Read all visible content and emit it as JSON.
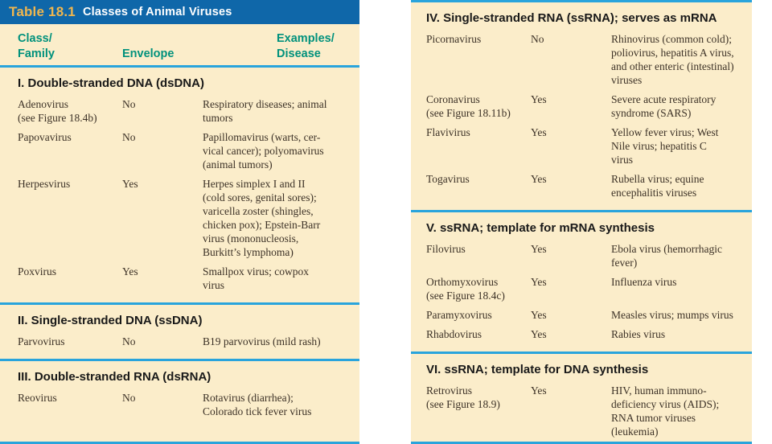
{
  "header": {
    "table_label": "Table 18.1",
    "table_title": "Classes of Animal Viruses"
  },
  "columns": {
    "family": [
      "Class/",
      "Family"
    ],
    "envelope": "Envelope",
    "examples": [
      "Examples/",
      "Disease"
    ]
  },
  "colors": {
    "title_bar_blue": "#0F67A9",
    "title_label_gold": "#F0B64E",
    "panel_cream": "#FBEDCA",
    "column_header_teal": "#00917C",
    "rule_cyan": "#29A4DC",
    "body_text": "#3D3227"
  },
  "sections": [
    {
      "heading": "I. Double-stranded DNA (dsDNA)",
      "rows": [
        {
          "family": [
            "Adenovirus",
            "(see Figure 18.4b)"
          ],
          "envelope": "No",
          "examples": [
            "Respiratory diseases; animal",
            "tumors"
          ]
        },
        {
          "family": [
            "Papovavirus"
          ],
          "envelope": "No",
          "examples": [
            "Papillomavirus (warts, cer-",
            "vical cancer); polyomavirus",
            "(animal tumors)"
          ]
        },
        {
          "family": [
            "Herpesvirus"
          ],
          "envelope": "Yes",
          "examples": [
            "Herpes simplex I and II",
            "(cold sores, genital sores);",
            "varicella zoster (shingles,",
            "chicken pox); Epstein-Barr",
            "virus (mononucleosis,",
            "Burkitt’s lymphoma)"
          ]
        },
        {
          "family": [
            "Poxvirus"
          ],
          "envelope": "Yes",
          "examples": [
            "Smallpox virus; cowpox",
            "virus"
          ]
        }
      ]
    },
    {
      "heading": "II. Single-stranded DNA (ssDNA)",
      "rows": [
        {
          "family": [
            "Parvovirus"
          ],
          "envelope": "No",
          "examples": [
            "B19 parvovirus (mild rash)"
          ]
        }
      ]
    },
    {
      "heading": "III. Double-stranded RNA (dsRNA)",
      "rows": [
        {
          "family": [
            "Reovirus"
          ],
          "envelope": "No",
          "examples": [
            "Rotavirus (diarrhea);",
            "Colorado tick fever virus"
          ]
        }
      ]
    },
    {
      "heading": "IV. Single-stranded RNA (ssRNA); serves as mRNA",
      "rows": [
        {
          "family": [
            "Picornavirus"
          ],
          "envelope": "No",
          "examples": [
            "Rhinovirus (common cold);",
            "poliovirus, hepatitis A virus,",
            "and other enteric (intestinal)",
            "viruses"
          ]
        },
        {
          "family": [
            "Coronavirus",
            "(see Figure 18.11b)"
          ],
          "envelope": "Yes",
          "examples": [
            "Severe acute respiratory",
            "syndrome (SARS)"
          ]
        },
        {
          "family": [
            "Flavivirus"
          ],
          "envelope": "Yes",
          "examples": [
            "Yellow fever virus; West",
            "Nile virus; hepatitis C",
            "virus"
          ]
        },
        {
          "family": [
            "Togavirus"
          ],
          "envelope": "Yes",
          "examples": [
            "Rubella virus; equine",
            "encephalitis viruses"
          ]
        }
      ]
    },
    {
      "heading": "V. ssRNA; template for mRNA synthesis",
      "rows": [
        {
          "family": [
            "Filovirus"
          ],
          "envelope": "Yes",
          "examples": [
            "Ebola virus (hemorrhagic",
            "fever)"
          ]
        },
        {
          "family": [
            "Orthomyxovirus",
            "(see Figure 18.4c)"
          ],
          "envelope": "Yes",
          "examples": [
            "Influenza virus"
          ]
        },
        {
          "family": [
            "Paramyxovirus"
          ],
          "envelope": "Yes",
          "examples": [
            "Measles virus; mumps virus"
          ]
        },
        {
          "family": [
            "Rhabdovirus"
          ],
          "envelope": "Yes",
          "examples": [
            "Rabies virus"
          ]
        }
      ]
    },
    {
      "heading": "VI. ssRNA; template for DNA synthesis",
      "rows": [
        {
          "family": [
            "Retrovirus",
            "(see Figure 18.9)"
          ],
          "envelope": "Yes",
          "examples": [
            "HIV, human immuno-",
            "deficiency virus (AIDS);",
            "RNA tumor viruses",
            "(leukemia)"
          ]
        }
      ]
    }
  ]
}
